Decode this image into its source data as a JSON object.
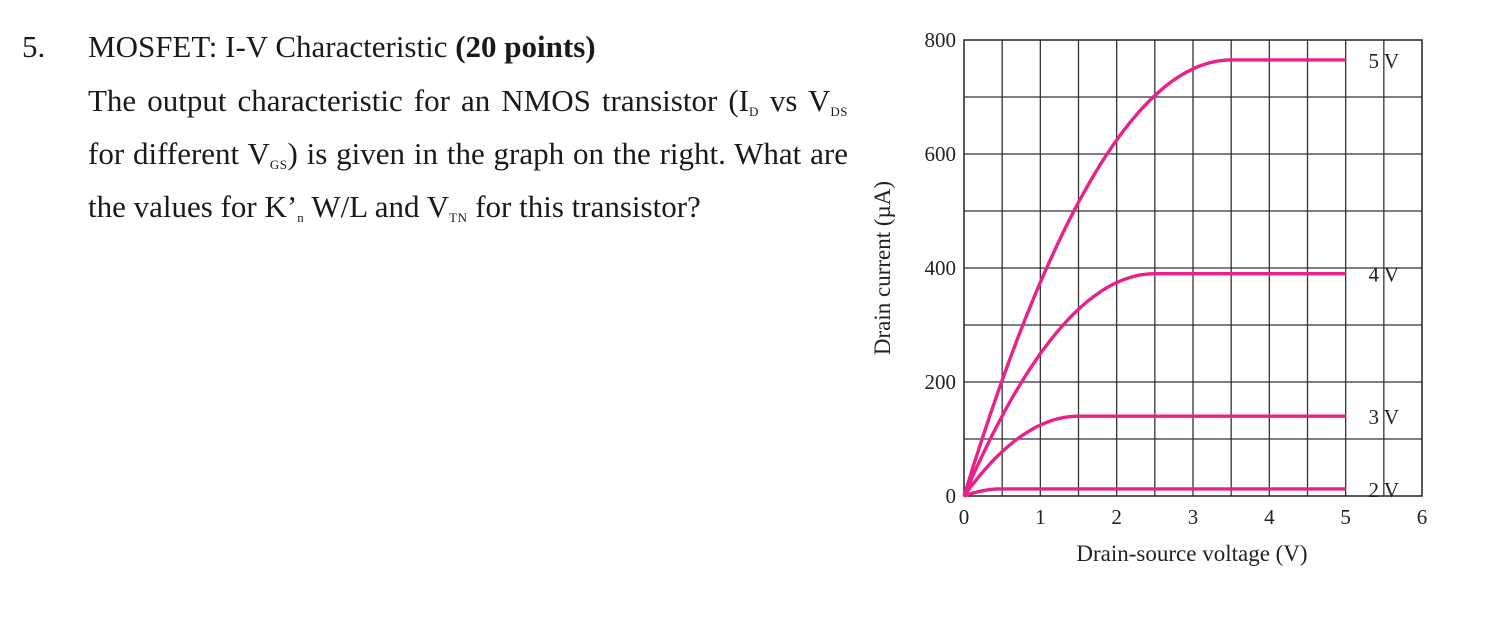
{
  "problem": {
    "number": "5.",
    "title": "MOSFET: I-V Characteristic",
    "points": "(20 points)",
    "text_1": "The output characteristic for an NMOS transistor (I",
    "sub_d": "D",
    "text_2": "vs V",
    "sub_ds": "DS",
    "text_3": " for different V",
    "sub_gs": "GS",
    "text_4": ") is given in the graph on the right. What are the values for K’",
    "sub_n": "n",
    "text_5": " W/L and V",
    "sub_tn": "TN",
    "text_6": " for this transistor?"
  },
  "chart_data": {
    "type": "line",
    "xlabel": "Drain-source voltage (V)",
    "ylabel": "Drain current (µA)",
    "xlim": [
      0,
      6
    ],
    "ylim": [
      0,
      800
    ],
    "xticks": [
      "0",
      "1",
      "2",
      "3",
      "4",
      "5",
      "6"
    ],
    "yticks": [
      "0",
      "200",
      "400",
      "600",
      "800"
    ],
    "grid": true,
    "line_color": "#e8228a",
    "series": [
      {
        "name": "2 V",
        "vgs": 2,
        "vsat": 0.5,
        "isat": 12.5
      },
      {
        "name": "3 V",
        "vgs": 3,
        "vsat": 1.5,
        "isat": 140
      },
      {
        "name": "4 V",
        "vgs": 4,
        "vsat": 2.5,
        "isat": 390
      },
      {
        "name": "5 V",
        "vgs": 5,
        "vsat": 3.5,
        "isat": 765
      }
    ]
  }
}
